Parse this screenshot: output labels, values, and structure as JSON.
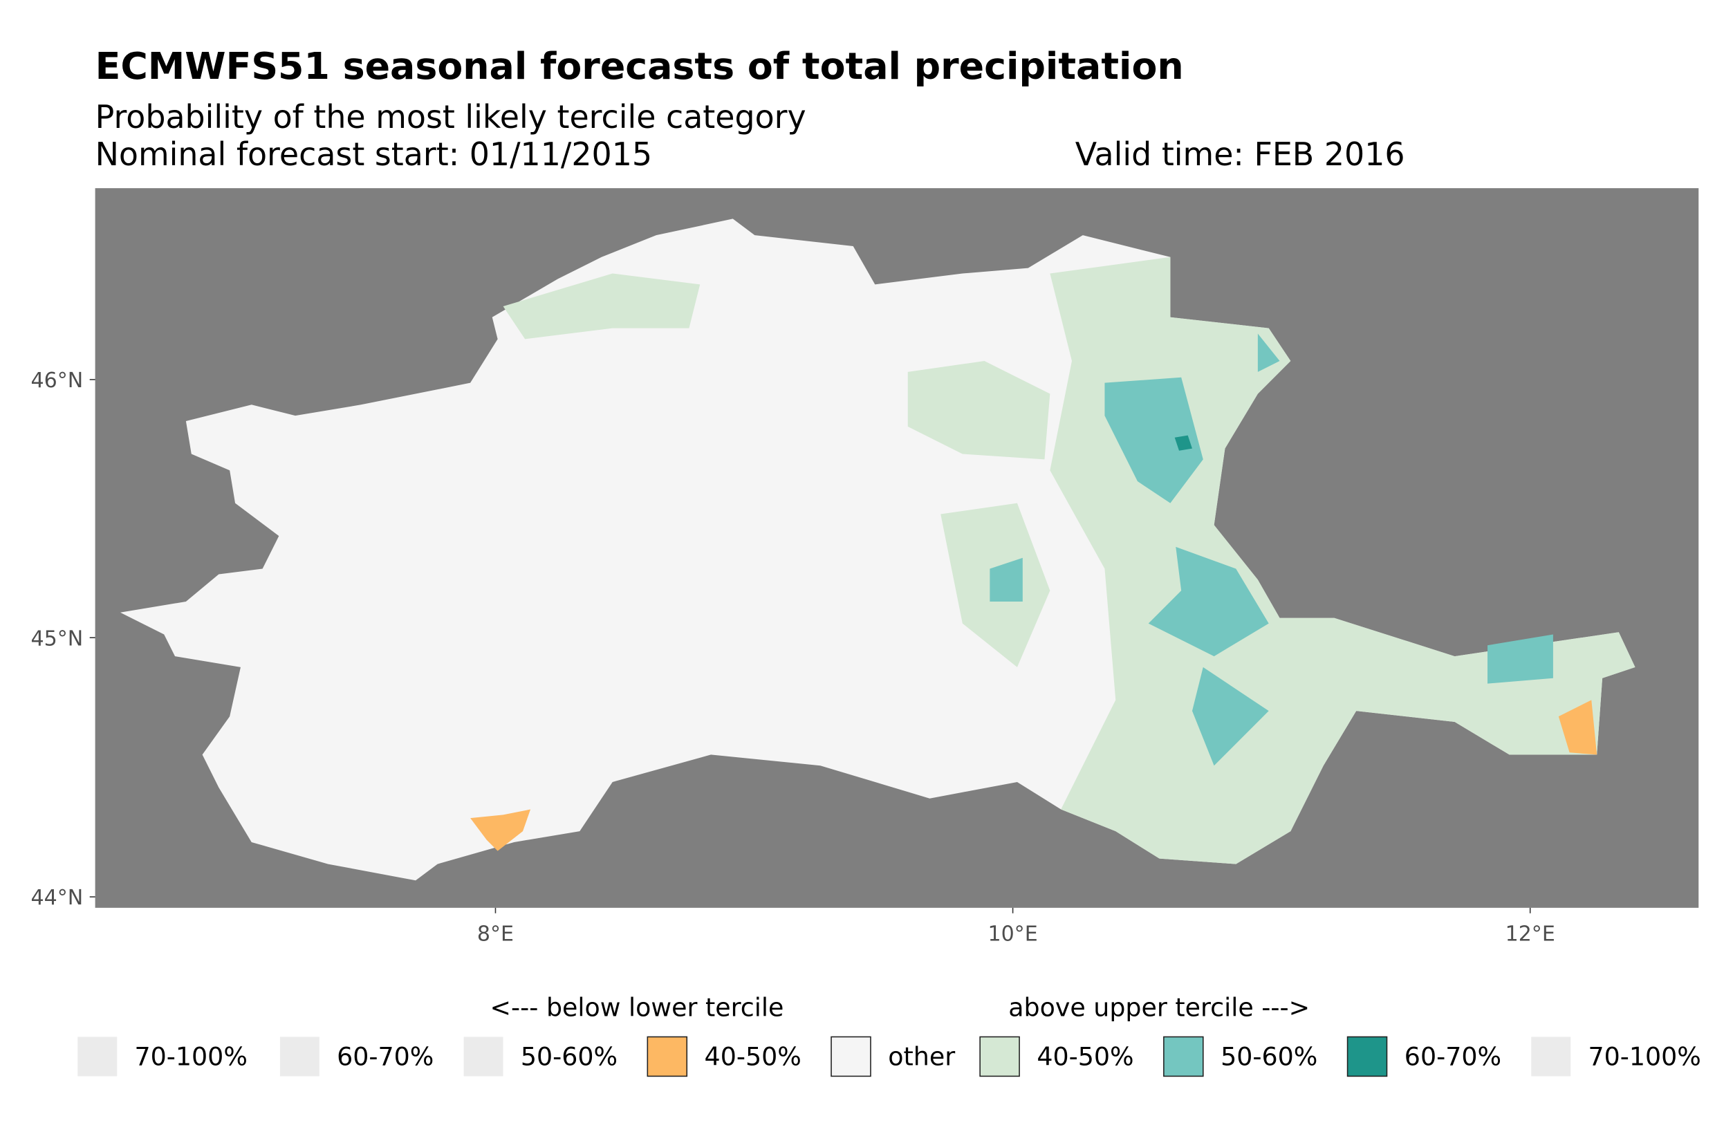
{
  "header": {
    "title": "ECMWFS51 seasonal forecasts of total precipitation",
    "subtitle": "Probability of the most likely tercile category",
    "forecast_start": "Nominal forecast start: 01/11/2015",
    "valid_time": "Valid time: FEB 2016"
  },
  "chart_data": {
    "type": "map",
    "title": "ECMWFS51 seasonal forecasts of total precipitation",
    "x_ticks": [
      "8°E",
      "10°E",
      "12°E"
    ],
    "y_ticks": [
      "46°N",
      "45°N",
      "44°N"
    ],
    "x_tick_values": [
      8,
      10,
      12
    ],
    "y_tick_values": [
      46,
      45,
      44
    ],
    "xlim": [
      6.45,
      12.65
    ],
    "ylim": [
      43.95,
      46.75
    ],
    "background_color": "#7f7f7f",
    "legend": {
      "placement": "bottom",
      "below_label": "<--- below lower tercile",
      "above_label": "above upper tercile --->",
      "items": [
        {
          "label": "70-100%",
          "color": "#ebebeb",
          "group": "below"
        },
        {
          "label": "60-70%",
          "color": "#ebebeb",
          "group": "below"
        },
        {
          "label": "50-60%",
          "color": "#ebebeb",
          "group": "below"
        },
        {
          "label": "40-50%",
          "color": "#fdb863",
          "group": "below"
        },
        {
          "label": "other",
          "color": "#f5f5f5",
          "group": "normal"
        },
        {
          "label": "40-50%",
          "color": "#d5e8d4",
          "group": "above"
        },
        {
          "label": "50-60%",
          "color": "#74c6c0",
          "group": "above"
        },
        {
          "label": "60-70%",
          "color": "#1e958a",
          "group": "above"
        },
        {
          "label": "70-100%",
          "color": "#ebebeb",
          "group": "above"
        }
      ]
    }
  }
}
